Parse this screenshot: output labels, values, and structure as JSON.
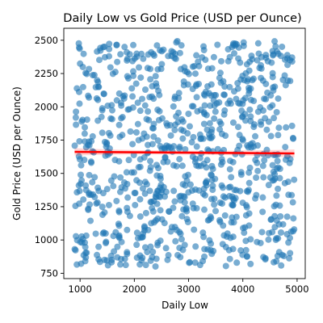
{
  "chart_data": {
    "type": "scatter",
    "title": "Daily Low vs Gold Price (USD per Ounce)",
    "xlabel": "Daily Low",
    "ylabel": "Gold Price (USD per Ounce)",
    "xlim": [
      700,
      5150
    ],
    "ylim": [
      710,
      2590
    ],
    "x_ticks": [
      1000,
      2000,
      3000,
      4000,
      5000
    ],
    "y_ticks": [
      750,
      1000,
      1250,
      1500,
      1750,
      2000,
      2250,
      2500
    ],
    "grid": false,
    "legend": "none",
    "point_color": "#1f77b4",
    "regression": {
      "color": "#ff0000",
      "x_range": [
        900,
        4950
      ],
      "y_start": 1662,
      "y_end": 1650,
      "ci_half_width_start": 28,
      "ci_half_width_mid": 14,
      "ci_half_width_end": 30
    },
    "points": {
      "description": "approx. 900 points uniformly spread",
      "x_range": [
        900,
        4950
      ],
      "y_range": [
        800,
        2500
      ],
      "count": 900
    }
  }
}
